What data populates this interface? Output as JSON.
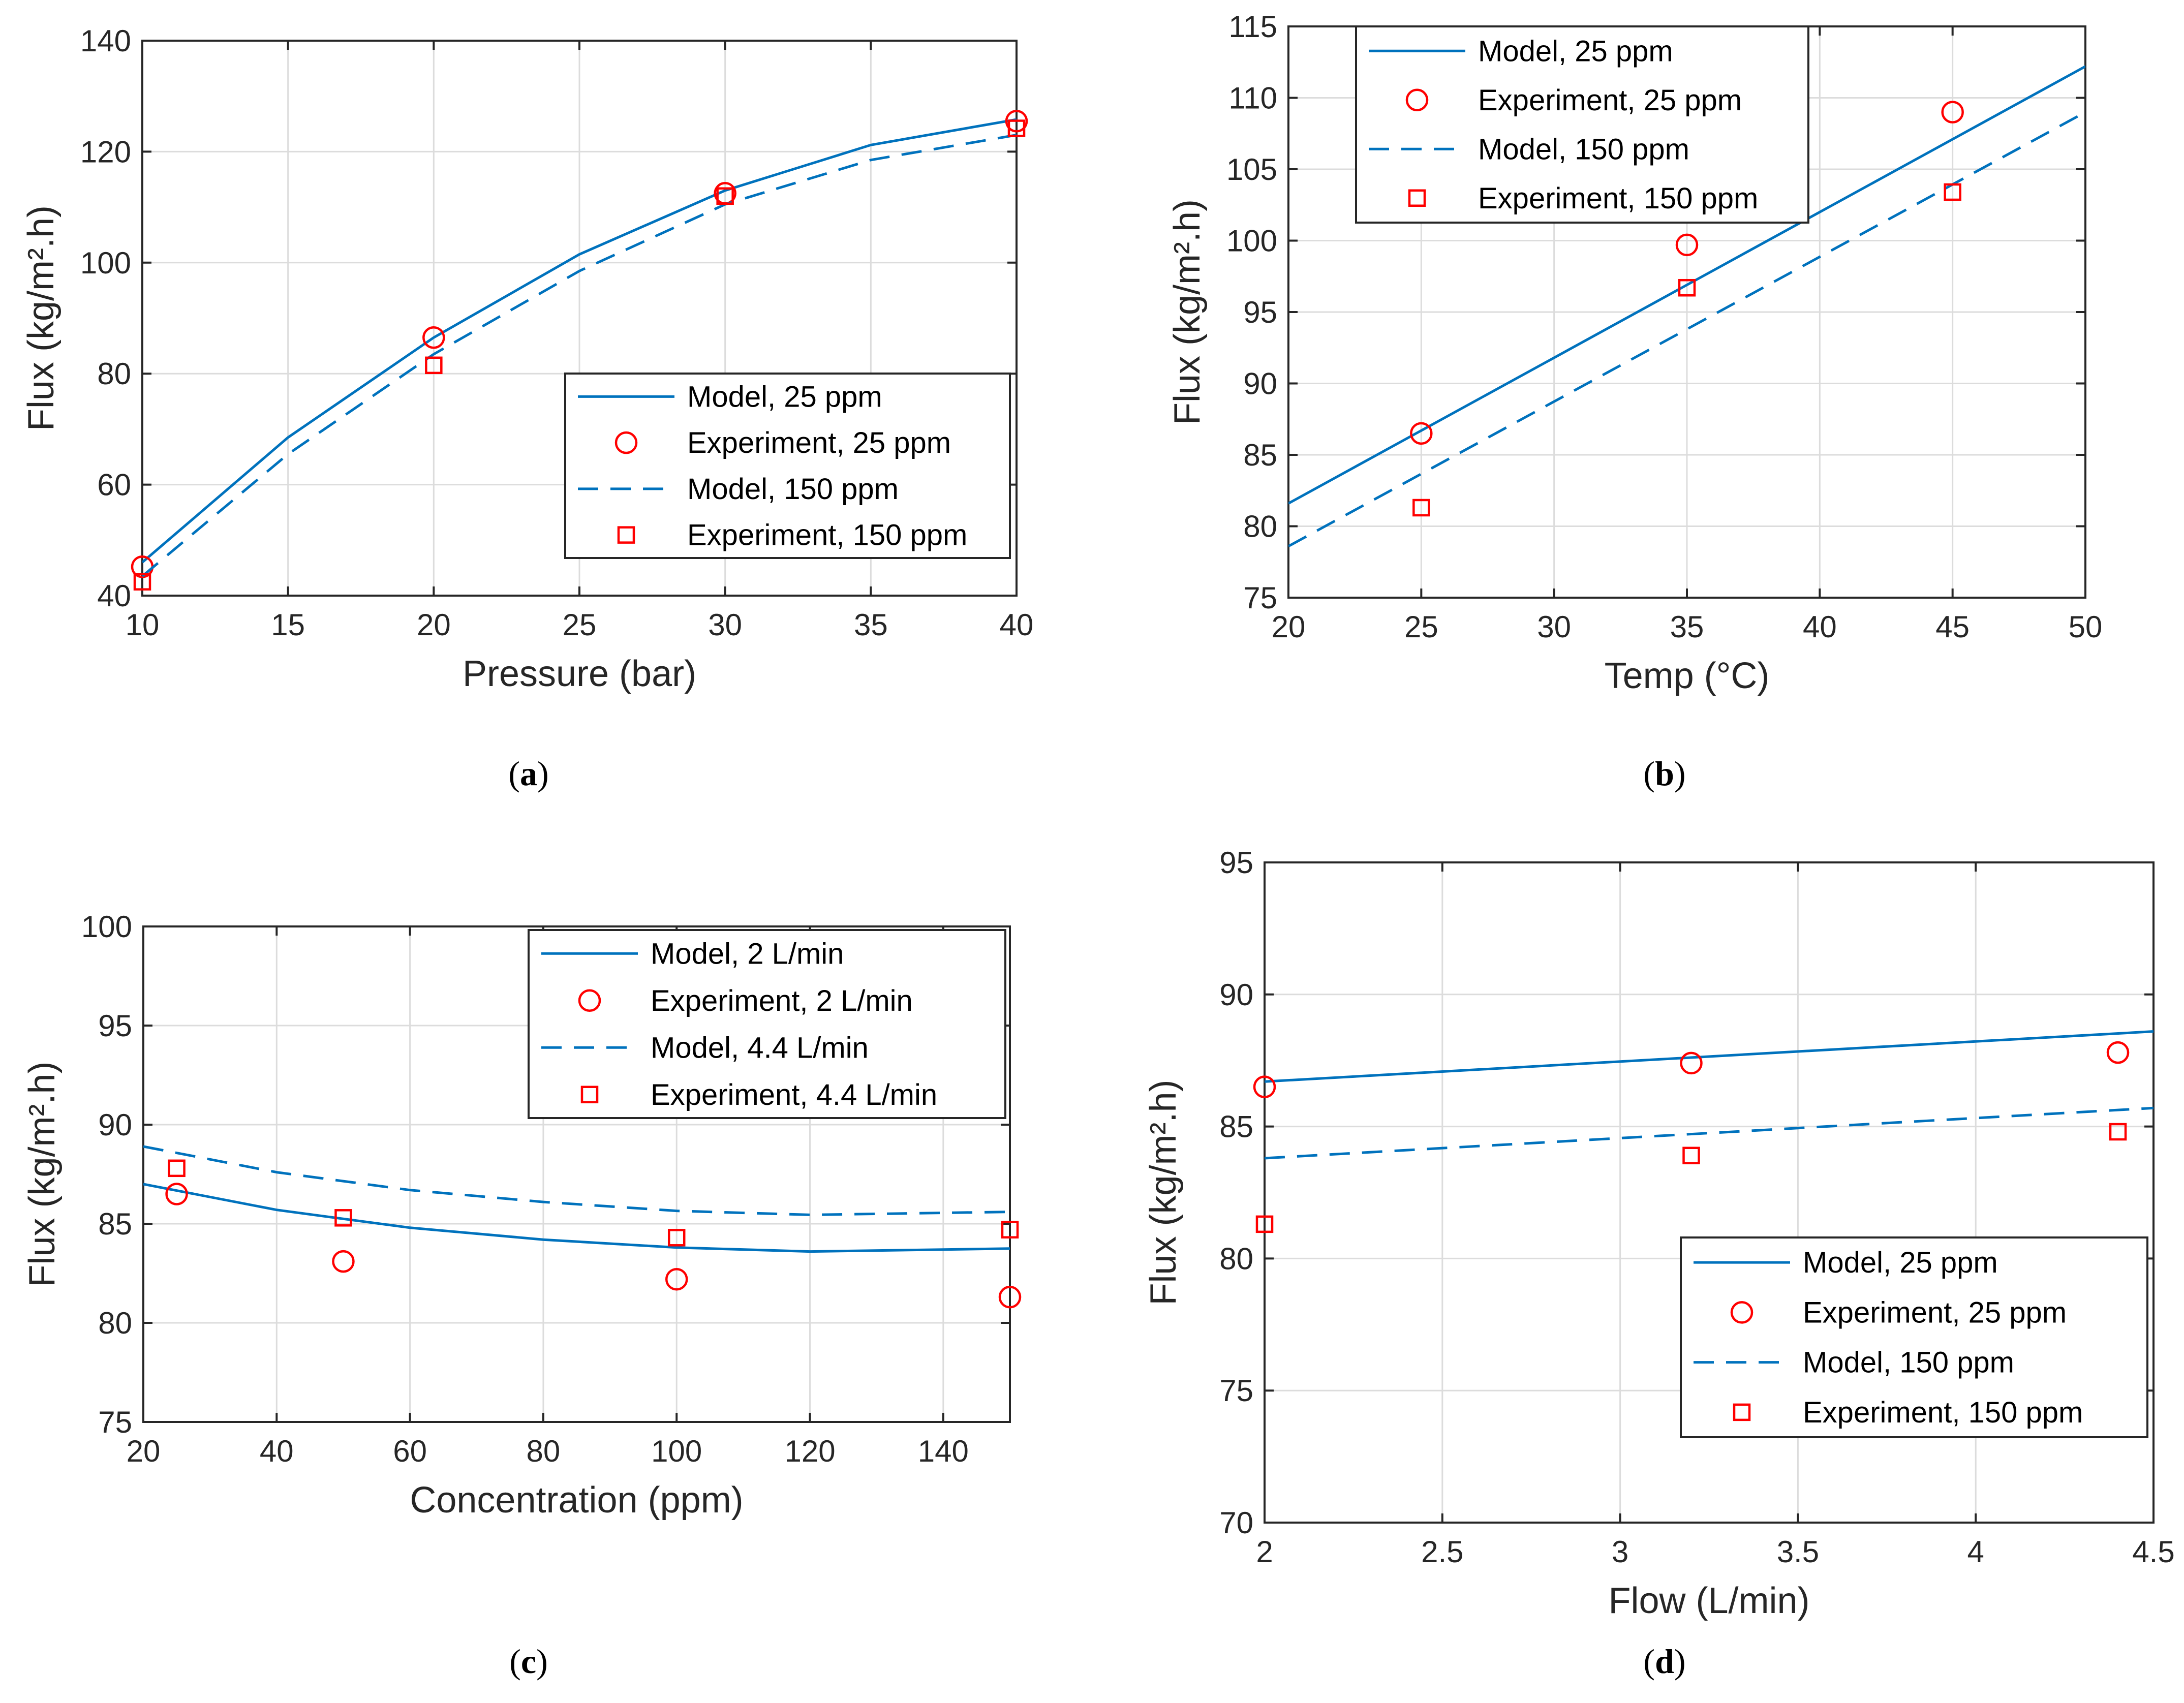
{
  "chart_data": [
    {
      "type": "line",
      "panel_label": "a",
      "xlabel": "Pressure (bar)",
      "ylabel": "Flux (kg/m².h)",
      "xlim": [
        10,
        40
      ],
      "ylim": [
        40,
        140
      ],
      "xticks": [
        10,
        15,
        20,
        25,
        30,
        35,
        40
      ],
      "yticks": [
        40,
        60,
        80,
        100,
        120,
        140
      ],
      "grid": true,
      "legend_position": "bottom-right",
      "colors": {
        "model": "#0072BD",
        "experiment": "#FF0000"
      },
      "series": [
        {
          "name": "Model, 25 ppm",
          "style": "solid",
          "x": [
            10,
            15,
            20,
            25,
            30,
            35,
            40
          ],
          "y": [
            46,
            68.5,
            86.5,
            101.5,
            113,
            121.2,
            125.8
          ]
        },
        {
          "name": "Experiment, 25 ppm",
          "style": "circle",
          "x": [
            10,
            20,
            30,
            40
          ],
          "y": [
            45.2,
            86.5,
            112.5,
            125.5
          ]
        },
        {
          "name": "Model, 150 ppm",
          "style": "dashed",
          "x": [
            10,
            15,
            20,
            25,
            30,
            35,
            40
          ],
          "y": [
            43.5,
            65.5,
            83.5,
            98.5,
            110.5,
            118.5,
            123
          ]
        },
        {
          "name": "Experiment, 150 ppm",
          "style": "square",
          "x": [
            10,
            20,
            30,
            40
          ],
          "y": [
            42.5,
            81.5,
            112,
            124.2
          ]
        }
      ]
    },
    {
      "type": "line",
      "panel_label": "b",
      "xlabel": "Temp (°C)",
      "ylabel": "Flux (kg/m².h)",
      "xlim": [
        20,
        50
      ],
      "ylim": [
        75,
        115
      ],
      "xticks": [
        20,
        25,
        30,
        35,
        40,
        45,
        50
      ],
      "yticks": [
        75,
        80,
        85,
        90,
        95,
        100,
        105,
        110,
        115
      ],
      "grid": true,
      "legend_position": "top-left",
      "colors": {
        "model": "#0072BD",
        "experiment": "#FF0000"
      },
      "series": [
        {
          "name": "Model, 25 ppm",
          "style": "solid",
          "x": [
            20,
            50
          ],
          "y": [
            81.6,
            112.2
          ]
        },
        {
          "name": "Experiment, 25 ppm",
          "style": "circle",
          "x": [
            25,
            35,
            45
          ],
          "y": [
            86.5,
            99.7,
            109
          ]
        },
        {
          "name": "Model, 150 ppm",
          "style": "dashed",
          "x": [
            20,
            50
          ],
          "y": [
            78.6,
            109
          ]
        },
        {
          "name": "Experiment, 150 ppm",
          "style": "square",
          "x": [
            25,
            35,
            45
          ],
          "y": [
            81.3,
            96.7,
            103.4
          ]
        }
      ]
    },
    {
      "type": "line",
      "panel_label": "c",
      "xlabel": "Concentration (ppm)",
      "ylabel": "Flux (kg/m².h)",
      "xlim": [
        20,
        150
      ],
      "ylim": [
        75,
        100
      ],
      "xticks": [
        20,
        40,
        60,
        80,
        100,
        120,
        140
      ],
      "yticks": [
        75,
        80,
        85,
        90,
        95,
        100
      ],
      "grid": true,
      "legend_position": "top-right",
      "colors": {
        "model": "#0072BD",
        "experiment": "#FF0000"
      },
      "series": [
        {
          "name": "Model, 2 L/min",
          "style": "solid",
          "x": [
            20,
            40,
            60,
            80,
            100,
            120,
            150
          ],
          "y": [
            87,
            85.7,
            84.8,
            84.2,
            83.8,
            83.6,
            83.75
          ]
        },
        {
          "name": "Experiment, 2 L/min",
          "style": "circle",
          "x": [
            25,
            50,
            100,
            150
          ],
          "y": [
            86.5,
            83.1,
            82.2,
            81.3
          ]
        },
        {
          "name": "Model, 4.4 L/min",
          "style": "dashed",
          "x": [
            20,
            40,
            60,
            80,
            100,
            120,
            150
          ],
          "y": [
            88.9,
            87.6,
            86.7,
            86.1,
            85.65,
            85.45,
            85.6
          ]
        },
        {
          "name": "Experiment, 4.4 L/min",
          "style": "square",
          "x": [
            25,
            50,
            100,
            150
          ],
          "y": [
            87.8,
            85.3,
            84.3,
            84.7
          ]
        }
      ]
    },
    {
      "type": "line",
      "panel_label": "d",
      "xlabel": "Flow (L/min)",
      "ylabel": "Flux (kg/m².h)",
      "xlim": [
        2,
        4.5
      ],
      "ylim": [
        70,
        95
      ],
      "xticks": [
        2,
        2.5,
        3,
        3.5,
        4,
        4.5
      ],
      "yticks": [
        70,
        75,
        80,
        85,
        90,
        95
      ],
      "grid": true,
      "legend_position": "bottom-right",
      "colors": {
        "model": "#0072BD",
        "experiment": "#FF0000"
      },
      "series": [
        {
          "name": "Model, 25 ppm",
          "style": "solid",
          "x": [
            2,
            4.5
          ],
          "y": [
            86.7,
            88.6
          ]
        },
        {
          "name": "Experiment, 25 ppm",
          "style": "circle",
          "x": [
            2,
            3.2,
            4.4
          ],
          "y": [
            86.5,
            87.4,
            87.8
          ]
        },
        {
          "name": "Model, 150 ppm",
          "style": "dashed",
          "x": [
            2,
            4.5
          ],
          "y": [
            83.8,
            85.7
          ]
        },
        {
          "name": "Experiment, 150 ppm",
          "style": "square",
          "x": [
            2,
            3.2,
            4.4
          ],
          "y": [
            81.3,
            83.9,
            84.8
          ]
        }
      ]
    }
  ]
}
